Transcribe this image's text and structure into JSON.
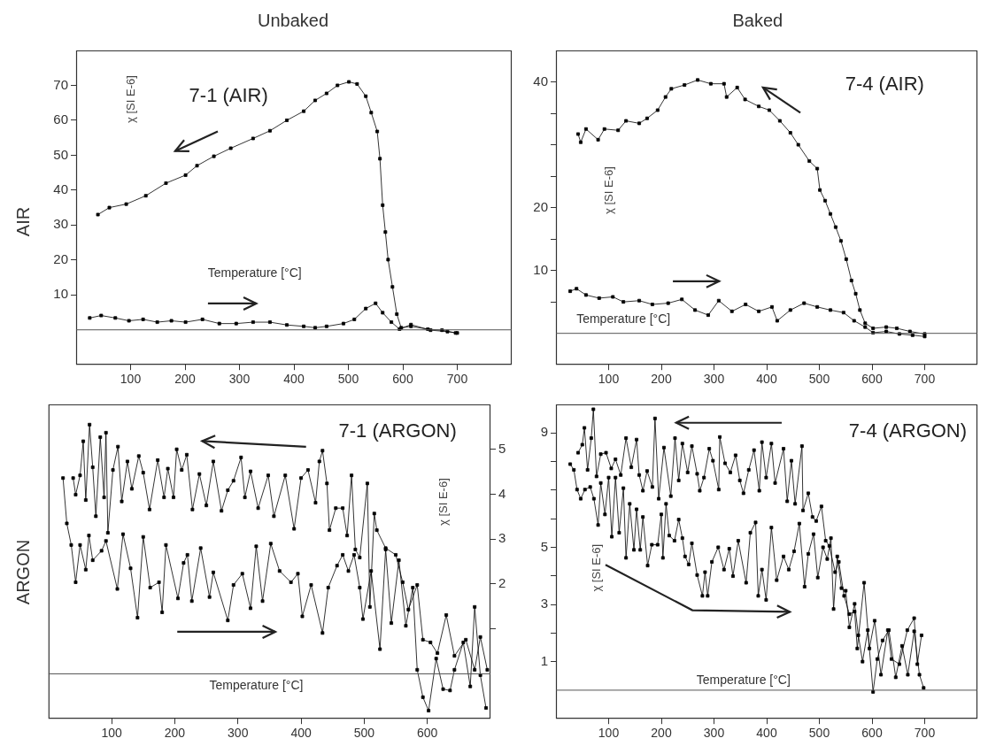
{
  "chart_data": [
    {
      "type": "line",
      "title": "7-1 (AIR)",
      "subtitle": "Unbaked",
      "annotations": [
        "AIR"
      ],
      "xlabel": "Temperature [°C]",
      "ylabel": "χ [SI E-6]",
      "xlim": [
        0,
        800
      ],
      "xticks": [
        100,
        200,
        300,
        400,
        500,
        600,
        700
      ],
      "ylim": [
        -10,
        80
      ],
      "yticks": [
        10,
        20,
        30,
        40,
        50,
        60,
        70
      ],
      "ref_lines": [
        {
          "axis": "y",
          "value": 0,
          "color": "#555555"
        }
      ],
      "marker": "square",
      "line_style": "solid",
      "series": [
        {
          "color": "#000000",
          "x": [
            40,
            61,
            92,
            128,
            165,
            201,
            222,
            253,
            284,
            325,
            356,
            387,
            418,
            439,
            460,
            480,
            501,
            516,
            532,
            542,
            553,
            558,
            563,
            568,
            573,
            581,
            589,
            597,
            615,
            646,
            672,
            697
          ],
          "values": [
            33,
            35,
            36,
            38.4,
            42,
            44.3,
            47,
            49.7,
            52,
            54.8,
            57,
            60,
            62.6,
            65.7,
            67.7,
            70,
            71,
            70.4,
            66.9,
            62.2,
            56.8,
            49,
            35.7,
            28,
            20.1,
            12.3,
            4.5,
            0.6,
            1,
            0.2,
            -0.1,
            -0.9
          ]
        },
        {
          "color": "#000000",
          "x": [
            25,
            46,
            72,
            97,
            123,
            149,
            175,
            201,
            232,
            263,
            294,
            325,
            356,
            387,
            418,
            439,
            460,
            491,
            511,
            532,
            550,
            563,
            579,
            594,
            615,
            651,
            682,
            700
          ],
          "values": [
            3.4,
            4.1,
            3.4,
            2.6,
            3,
            2.2,
            2.6,
            2.2,
            3,
            1.8,
            1.8,
            2.2,
            2.2,
            1.4,
            1,
            0.6,
            1,
            1.8,
            3,
            6.1,
            7.6,
            4.9,
            2.2,
            0.2,
            1.5,
            -0.1,
            -0.5,
            -0.9
          ]
        }
      ]
    },
    {
      "type": "line",
      "title": "7-4 (AIR)",
      "subtitle": "Baked",
      "xlabel": "Temperature [°C]",
      "ylabel": "χ [SI E-6]",
      "xlim": [
        0,
        800
      ],
      "xticks": [
        100,
        200,
        300,
        400,
        500,
        600,
        700
      ],
      "ylim": [
        -5,
        45
      ],
      "yticks": [
        {
          "value": 5,
          "label": null
        },
        10,
        {
          "value": 15,
          "label": null
        },
        20,
        {
          "value": 25,
          "label": null
        },
        {
          "value": 30,
          "label": null
        },
        {
          "value": 35,
          "label": null
        },
        40
      ],
      "ref_lines": [
        {
          "axis": "y",
          "value": 0,
          "color": "#555555"
        }
      ],
      "marker": "square",
      "line_style": "solid",
      "series": [
        {
          "color": "#000000",
          "x": [
            42,
            47,
            57,
            80,
            92,
            118,
            133,
            158,
            173,
            193,
            208,
            219,
            244,
            269,
            294,
            319,
            324,
            344,
            359,
            385,
            405,
            425,
            445,
            460,
            481,
            496,
            501,
            511,
            521,
            531,
            541,
            551,
            561,
            569,
            577,
            587,
            602,
            627,
            647,
            672,
            700
          ],
          "values": [
            31.7,
            30.4,
            32.5,
            30.8,
            32.5,
            32.3,
            33.8,
            33.4,
            34.2,
            35.5,
            37.6,
            38.9,
            39.5,
            40.3,
            39.7,
            39.7,
            37.6,
            39.1,
            37.2,
            36.1,
            35.5,
            33.8,
            31.9,
            30,
            27.4,
            26.2,
            22.8,
            21.1,
            19,
            16.9,
            14.7,
            11.8,
            8.4,
            6.3,
            3.7,
            1.6,
            0.8,
            1,
            0.8,
            0.3,
            -0.1
          ]
        },
        {
          "color": "#000000",
          "x": [
            27,
            39,
            57,
            82,
            108,
            128,
            158,
            183,
            213,
            239,
            264,
            289,
            309,
            334,
            360,
            385,
            410,
            420,
            445,
            471,
            496,
            521,
            546,
            566,
            587,
            602,
            627,
            652,
            677,
            700
          ],
          "values": [
            6.7,
            7.1,
            6.1,
            5.6,
            5.8,
            5,
            5.2,
            4.6,
            4.8,
            5.4,
            3.7,
            2.9,
            5.2,
            3.5,
            4.6,
            3.5,
            4.2,
            2,
            3.7,
            4.8,
            4.2,
            3.7,
            3.3,
            2,
            1,
            0.1,
            0.3,
            -0.1,
            -0.3,
            -0.5
          ]
        }
      ]
    },
    {
      "type": "line",
      "title": "7-1 (ARGON)",
      "annotations": [
        "ARGON"
      ],
      "xlabel": "Temperature [°C]",
      "y2label": "χ [SI E-6]",
      "xlim": [
        0,
        700
      ],
      "xticks": [
        100,
        200,
        300,
        400,
        500,
        600
      ],
      "y2lim": [
        -1,
        6
      ],
      "y2ticks": [
        {
          "value": 1,
          "label": null
        },
        2,
        3,
        4,
        5
      ],
      "ref_lines": [
        {
          "axis": "y2",
          "value": 0,
          "color": "#555555"
        }
      ],
      "marker": "square",
      "line_style": "solid",
      "series": [
        {
          "color": "#000000",
          "axis": "y2",
          "x": [
            23,
            29,
            36,
            43,
            50,
            59,
            64,
            70,
            84,
            91,
            109,
            118,
            130,
            141,
            150,
            161,
            175,
            180,
            186,
            205,
            214,
            220,
            227,
            241,
            255,
            261,
            284,
            293,
            307,
            320,
            329,
            339,
            352,
            366,
            384,
            395,
            402,
            416,
            434,
            443,
            457,
            466,
            475,
            484,
            493,
            498,
            511,
            525,
            534,
            543,
            555,
            566,
            577,
            584,
            593,
            602,
            614,
            625,
            636,
            643,
            657,
            668,
            675,
            684,
            693
          ],
          "values": [
            4.36,
            3.35,
            2.87,
            2.04,
            2.87,
            2.32,
            3.08,
            2.53,
            2.74,
            2.96,
            1.89,
            3.11,
            2.35,
            1.25,
            3.05,
            1.92,
            2.04,
            1.37,
            2.87,
            1.68,
            2.47,
            2.65,
            1.62,
            2.8,
            1.71,
            2.26,
            1.19,
            1.98,
            2.23,
            1.46,
            2.84,
            1.62,
            2.9,
            2.29,
            2.04,
            2.23,
            1.28,
            1.98,
            0.91,
            1.92,
            2.41,
            2.65,
            2.29,
            2.65,
            1.92,
            1.22,
            2.29,
            0.55,
            2.77,
            1.13,
            2.53,
            1.07,
            1.92,
            0.09,
            -0.52,
            -0.82,
            0.34,
            -0.34,
            -0.37,
            0.09,
            0.7,
            -0.28,
            1.49,
            -0.03,
            -0.76
          ]
        },
        {
          "color": "#000000",
          "axis": "y2",
          "x": [
            39,
            43,
            50,
            55,
            59,
            65,
            70,
            75,
            82,
            88,
            91,
            94,
            102,
            110,
            116,
            125,
            132,
            143,
            150,
            160,
            173,
            183,
            189,
            198,
            203,
            211,
            219,
            228,
            239,
            250,
            261,
            274,
            284,
            293,
            305,
            311,
            320,
            332,
            348,
            357,
            375,
            389,
            400,
            411,
            423,
            429,
            434,
            441,
            445,
            455,
            466,
            473,
            480,
            486,
            493,
            505,
            509,
            516,
            520,
            534,
            550,
            561,
            570,
            584,
            593,
            605,
            616,
            630,
            643,
            661,
            675,
            684,
            695
          ],
          "values": [
            4.36,
            3.99,
            4.42,
            5.18,
            3.87,
            5.55,
            4.6,
            3.51,
            5.27,
            3.93,
            5.37,
            3.14,
            4.54,
            5.06,
            3.84,
            4.73,
            4.12,
            4.85,
            4.48,
            3.66,
            4.76,
            3.93,
            4.57,
            3.93,
            5,
            4.54,
            4.88,
            3.66,
            4.45,
            3.75,
            4.73,
            3.63,
            4.09,
            4.3,
            4.82,
            3.93,
            4.51,
            3.69,
            4.42,
            3.51,
            4.42,
            3.23,
            4.36,
            4.54,
            3.81,
            4.73,
            4.97,
            4.24,
            3.2,
            3.69,
            3.69,
            3.08,
            4.42,
            2.77,
            2.59,
            4.24,
            1.49,
            3.57,
            3.2,
            2.8,
            2.65,
            2.04,
            1.43,
            1.98,
            0.76,
            0.7,
            0.46,
            1.31,
            0.4,
            0.76,
            0.09,
            0.82,
            0.09
          ]
        }
      ]
    },
    {
      "type": "line",
      "title": "7-4 (ARGON)",
      "xlabel": "Temperature [°C]",
      "ylabel": "χ [SI E-6]",
      "xlim": [
        0,
        800
      ],
      "xticks": [
        100,
        200,
        300,
        400,
        500,
        600,
        700
      ],
      "ylim": [
        -1,
        10
      ],
      "yticks": [
        1,
        {
          "value": 2,
          "label": null
        },
        3,
        {
          "value": 4,
          "label": null
        },
        5,
        {
          "value": 6,
          "label": null
        },
        {
          "value": 7,
          "label": null
        },
        {
          "value": 8,
          "label": null
        },
        9
      ],
      "ref_lines": [
        {
          "axis": "y",
          "value": 0,
          "color": "#555555"
        }
      ],
      "marker": "square",
      "line_style": "solid",
      "series": [
        {
          "color": "#000000",
          "x": [
            27,
            34,
            40,
            47,
            55,
            65,
            72,
            80,
            85,
            93,
            100,
            106,
            113,
            120,
            128,
            133,
            140,
            148,
            153,
            160,
            165,
            174,
            182,
            193,
            200,
            203,
            209,
            215,
            225,
            233,
            240,
            245,
            252,
            258,
            268,
            278,
            283,
            288,
            296,
            308,
            319,
            329,
            336,
            346,
            361,
            369,
            379,
            384,
            391,
            399,
            409,
            419,
            432,
            442,
            452,
            462,
            472,
            479,
            489,
            497,
            507,
            515,
            522,
            527,
            534,
            542,
            550,
            557,
            567,
            574,
            582,
            592,
            602,
            610,
            620,
            632,
            645,
            657,
            668,
            680,
            690,
            698
          ],
          "values": [
            7.91,
            7.71,
            7.02,
            6.7,
            7.02,
            7.11,
            6.7,
            5.78,
            7.25,
            6.15,
            7.44,
            5.37,
            7.44,
            5.51,
            7.07,
            4.63,
            6.52,
            4.91,
            6.33,
            4.91,
            6.06,
            4.36,
            5.09,
            5.09,
            6.15,
            4.63,
            6.52,
            5.41,
            5.23,
            5.97,
            5.32,
            4.68,
            4.4,
            5.14,
            4.03,
            3.3,
            4.13,
            3.3,
            4.49,
            5,
            4.22,
            4.95,
            3.99,
            5.23,
            3.76,
            5.51,
            5.87,
            3.3,
            4.22,
            3.16,
            5.69,
            3.85,
            4.68,
            4.22,
            4.86,
            5.83,
            3.62,
            4.77,
            5.46,
            3.94,
            5,
            4.59,
            5.32,
            2.84,
            4.68,
            3.57,
            3.48,
            2.2,
            3.02,
            1.92,
            1,
            2.1,
            -0.06,
            1.09,
            1.74,
            2.1,
            0.45,
            1.55,
            0.54,
            2.06,
            0.54,
            0.08
          ]
        },
        {
          "color": "#000000",
          "x": [
            42,
            50,
            54,
            60,
            67,
            71,
            77,
            85,
            95,
            105,
            113,
            123,
            133,
            143,
            153,
            158,
            165,
            173,
            183,
            188,
            195,
            205,
            218,
            226,
            233,
            240,
            250,
            258,
            268,
            273,
            281,
            291,
            298,
            309,
            311,
            321,
            331,
            341,
            349,
            356,
            366,
            376,
            386,
            391,
            399,
            409,
            416,
            432,
            439,
            447,
            454,
            467,
            469,
            479,
            487,
            494,
            504,
            512,
            519,
            530,
            537,
            547,
            557,
            567,
            572,
            585,
            595,
            605,
            617,
            630,
            637,
            652,
            667,
            680,
            686,
            694
          ],
          "values": [
            8.31,
            8.59,
            9.18,
            7.71,
            8.82,
            9.83,
            7.48,
            8.26,
            8.31,
            7.76,
            8.08,
            7.53,
            8.82,
            7.8,
            8.77,
            7.53,
            6.98,
            7.67,
            7.11,
            9.51,
            6.7,
            8.49,
            6.79,
            8.82,
            7.34,
            8.63,
            7.62,
            8.54,
            7.57,
            6.98,
            7.44,
            8.45,
            8.03,
            7.02,
            8.86,
            7.94,
            7.62,
            8.22,
            7.34,
            6.89,
            7.71,
            8.4,
            6.98,
            8.68,
            7.44,
            8.63,
            7.25,
            8.45,
            6.61,
            8.03,
            6.52,
            8.54,
            6.29,
            6.89,
            6.06,
            5.92,
            6.43,
            5.23,
            5.05,
            4.13,
            4.49,
            3.3,
            2.66,
            2.75,
            1.46,
            3.76,
            1.46,
            2.43,
            0.54,
            2.1,
            1.09,
            0.91,
            2.1,
            2.52,
            0.91,
            1.92
          ]
        }
      ]
    }
  ]
}
